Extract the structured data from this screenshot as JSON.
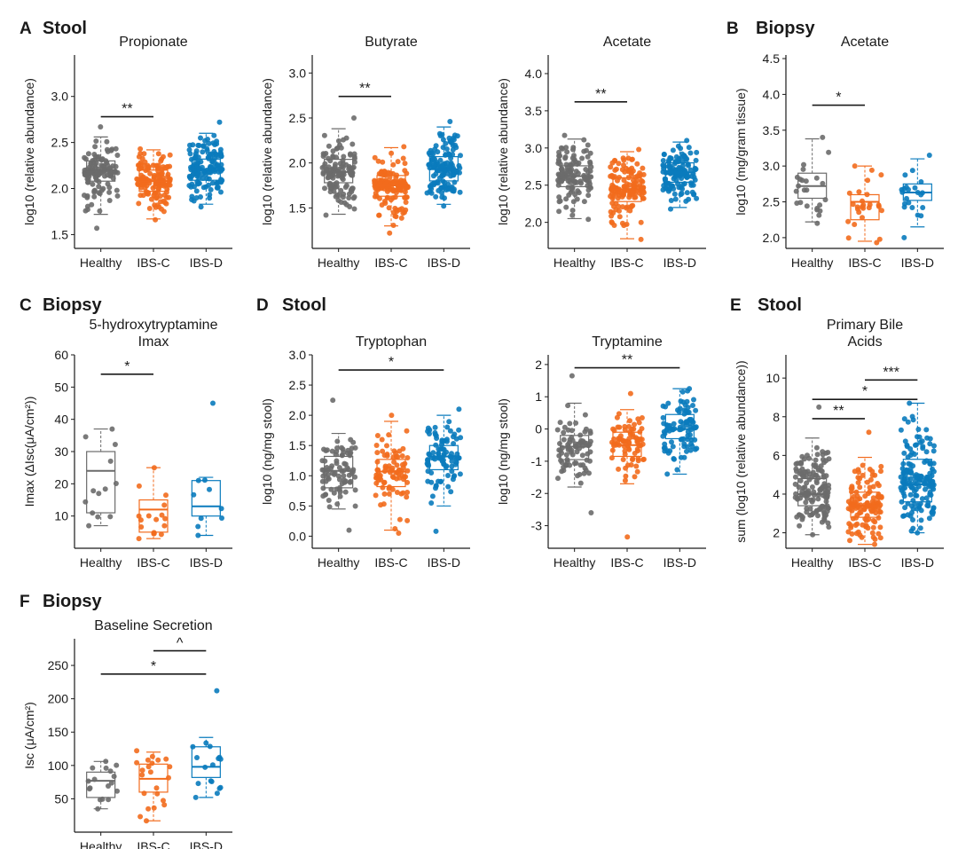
{
  "colors": {
    "Healthy": "#6b6b6b",
    "IBS-C": "#f26b1d",
    "IBS-D": "#0a7bbd",
    "axis": "#1a1a1a"
  },
  "sections": [
    {
      "label": "A",
      "title": "Stool"
    },
    {
      "label": "B",
      "title": "Biopsy"
    },
    {
      "label": "C",
      "title": "Biopsy"
    },
    {
      "label": "D",
      "title": "Stool"
    },
    {
      "label": "E",
      "title": "Stool"
    },
    {
      "label": "F",
      "title": "Biopsy"
    }
  ],
  "chart_data": [
    {
      "type": "box",
      "id": "propionate",
      "panel": "A",
      "title": [
        "Propionate"
      ],
      "ylabel": "log10 (relative abundance)",
      "ylim": [
        1.35,
        3.45
      ],
      "yticks": [
        "1.5",
        "2.0",
        "2.5",
        "3.0"
      ],
      "categories": [
        "Healthy",
        "IBS-C",
        "IBS-D"
      ],
      "n_points": [
        120,
        140,
        140
      ],
      "boxes": [
        {
          "q1": 2.08,
          "median": 2.2,
          "q3": 2.3,
          "lo": 1.72,
          "hi": 2.56,
          "pmin": 1.57,
          "pmax": 2.67
        },
        {
          "q1": 1.97,
          "median": 2.08,
          "q3": 2.2,
          "lo": 1.67,
          "hi": 2.42,
          "pmin": 1.66,
          "pmax": 2.43
        },
        {
          "q1": 2.09,
          "median": 2.2,
          "q3": 2.32,
          "lo": 1.83,
          "hi": 2.6,
          "pmin": 1.8,
          "pmax": 2.72
        }
      ],
      "sig": [
        {
          "from": 0,
          "to": 1,
          "y": 2.78,
          "label": "**"
        }
      ]
    },
    {
      "type": "box",
      "id": "butyrate",
      "panel": "A",
      "title": [
        "Butyrate"
      ],
      "ylabel": "log10 (relative abundance)",
      "ylim": [
        1.05,
        3.2
      ],
      "yticks": [
        "1.5",
        "2.0",
        "2.5",
        "3.0"
      ],
      "categories": [
        "Healthy",
        "IBS-C",
        "IBS-D"
      ],
      "n_points": [
        120,
        140,
        140
      ],
      "boxes": [
        {
          "q1": 1.78,
          "median": 1.9,
          "q3": 2.04,
          "lo": 1.43,
          "hi": 2.38,
          "pmin": 1.42,
          "pmax": 2.5
        },
        {
          "q1": 1.63,
          "median": 1.75,
          "q3": 1.86,
          "lo": 1.3,
          "hi": 2.17,
          "pmin": 1.22,
          "pmax": 2.18
        },
        {
          "q1": 1.8,
          "median": 1.93,
          "q3": 2.07,
          "lo": 1.54,
          "hi": 2.4,
          "pmin": 1.52,
          "pmax": 2.46
        }
      ],
      "sig": [
        {
          "from": 0,
          "to": 1,
          "y": 2.74,
          "label": "**"
        }
      ]
    },
    {
      "type": "box",
      "id": "acetate-stool",
      "panel": "A",
      "title": [
        "Acetate"
      ],
      "ylabel": "log10 (relative abundance)",
      "ylim": [
        1.65,
        4.25
      ],
      "yticks": [
        "2.0",
        "2.5",
        "3.0",
        "3.5",
        "4.0"
      ],
      "categories": [
        "Healthy",
        "IBS-C",
        "IBS-D"
      ],
      "n_points": [
        120,
        140,
        140
      ],
      "boxes": [
        {
          "q1": 2.48,
          "median": 2.62,
          "q3": 2.76,
          "lo": 2.05,
          "hi": 3.12,
          "pmin": 2.04,
          "pmax": 3.17
        },
        {
          "q1": 2.28,
          "median": 2.44,
          "q3": 2.6,
          "lo": 1.78,
          "hi": 2.95,
          "pmin": 1.77,
          "pmax": 2.98
        },
        {
          "q1": 2.54,
          "median": 2.67,
          "q3": 2.8,
          "lo": 2.2,
          "hi": 3.08,
          "pmin": 2.18,
          "pmax": 3.1
        }
      ],
      "sig": [
        {
          "from": 0,
          "to": 1,
          "y": 3.62,
          "label": "**"
        }
      ]
    },
    {
      "type": "box",
      "id": "acetate-biopsy",
      "panel": "B",
      "title": [
        "Acetate"
      ],
      "ylabel": "log10 (mg/gram tissue)",
      "ylim": [
        1.85,
        4.55
      ],
      "yticks": [
        "2.0",
        "2.5",
        "3.0",
        "3.5",
        "4.0",
        "4.5"
      ],
      "categories": [
        "Healthy",
        "IBS-C",
        "IBS-D"
      ],
      "n_points": [
        22,
        24,
        20
      ],
      "boxes": [
        {
          "q1": 2.55,
          "median": 2.72,
          "q3": 2.9,
          "lo": 2.22,
          "hi": 3.38,
          "pmin": 2.2,
          "pmax": 3.4
        },
        {
          "q1": 2.25,
          "median": 2.5,
          "q3": 2.6,
          "lo": 1.95,
          "hi": 3.0,
          "pmin": 1.93,
          "pmax": 3.0
        },
        {
          "q1": 2.52,
          "median": 2.63,
          "q3": 2.75,
          "lo": 2.15,
          "hi": 3.1,
          "pmin": 2.0,
          "pmax": 3.15
        }
      ],
      "sig": [
        {
          "from": 0,
          "to": 1,
          "y": 3.85,
          "label": "*"
        }
      ]
    },
    {
      "type": "box",
      "id": "5ht-imax",
      "panel": "C",
      "title": [
        "5-hydroxytryptamine",
        "Imax"
      ],
      "ylabel": "Imax (ΔIsc(μA/cm²))",
      "ylim": [
        0,
        60
      ],
      "yticks": [
        "10",
        "20",
        "30",
        "40",
        "50",
        "60"
      ],
      "categories": [
        "Healthy",
        "IBS-C",
        "IBS-D"
      ],
      "n_points": [
        11,
        15,
        8
      ],
      "boxes": [
        {
          "q1": 11,
          "median": 24,
          "q3": 30,
          "lo": 7,
          "hi": 37,
          "pmin": 7,
          "pmax": 37
        },
        {
          "q1": 5,
          "median": 12,
          "q3": 15,
          "lo": 3,
          "hi": 25,
          "pmin": 3,
          "pmax": 25
        },
        {
          "q1": 10,
          "median": 13,
          "q3": 21,
          "lo": 4,
          "hi": 22,
          "pmin": 4,
          "pmax": 45
        }
      ],
      "sig": [
        {
          "from": 0,
          "to": 1,
          "y": 54,
          "label": "*"
        }
      ]
    },
    {
      "type": "box",
      "id": "tryptophan",
      "panel": "D",
      "title": [
        "Tryptophan"
      ],
      "ylabel": "log10 (ng/mg stool)",
      "ylim": [
        -0.2,
        3.0
      ],
      "yticks": [
        "0.0",
        "0.5",
        "1.0",
        "1.5",
        "2.0",
        "2.5",
        "3.0"
      ],
      "categories": [
        "Healthy",
        "IBS-C",
        "IBS-D"
      ],
      "n_points": [
        80,
        80,
        90
      ],
      "boxes": [
        {
          "q1": 0.8,
          "median": 1.08,
          "q3": 1.32,
          "lo": 0.45,
          "hi": 1.7,
          "pmin": 0.1,
          "pmax": 2.25
        },
        {
          "q1": 0.82,
          "median": 1.07,
          "q3": 1.27,
          "lo": 0.1,
          "hi": 1.9,
          "pmin": 0.05,
          "pmax": 2.0
        },
        {
          "q1": 1.1,
          "median": 1.32,
          "q3": 1.5,
          "lo": 0.5,
          "hi": 2.0,
          "pmin": 0.08,
          "pmax": 2.1
        }
      ],
      "sig": [
        {
          "from": 0,
          "to": 2,
          "y": 2.75,
          "label": "*"
        }
      ]
    },
    {
      "type": "box",
      "id": "tryptamine",
      "panel": "D",
      "title": [
        "Tryptamine"
      ],
      "ylabel": "log10 (ng/mg stool)",
      "ylim": [
        -3.7,
        2.3
      ],
      "yticks": [
        "-3",
        "-2",
        "-1",
        "0",
        "1",
        "2"
      ],
      "categories": [
        "Healthy",
        "IBS-C",
        "IBS-D"
      ],
      "n_points": [
        80,
        80,
        90
      ],
      "boxes": [
        {
          "q1": -0.95,
          "median": -0.55,
          "q3": -0.2,
          "lo": -1.8,
          "hi": 0.8,
          "pmin": -2.6,
          "pmax": 1.65
        },
        {
          "q1": -0.85,
          "median": -0.5,
          "q3": -0.1,
          "lo": -1.7,
          "hi": 0.6,
          "pmin": -3.35,
          "pmax": 1.1
        },
        {
          "q1": -0.3,
          "median": 0.0,
          "q3": 0.45,
          "lo": -1.4,
          "hi": 1.25,
          "pmin": -1.4,
          "pmax": 1.25
        }
      ],
      "sig": [
        {
          "from": 0,
          "to": 2,
          "y": 1.9,
          "label": "**"
        }
      ]
    },
    {
      "type": "box",
      "id": "primary-bile-acids",
      "panel": "E",
      "title": [
        "Primary Bile",
        "Acids"
      ],
      "ylabel": "sum (log10 (relative abundance))",
      "ylim": [
        1.2,
        11.2
      ],
      "yticks": [
        "2",
        "4",
        "6",
        "8",
        "10"
      ],
      "categories": [
        "Healthy",
        "IBS-C",
        "IBS-D"
      ],
      "n_points": [
        140,
        120,
        150
      ],
      "boxes": [
        {
          "q1": 3.4,
          "median": 4.0,
          "q3": 4.8,
          "lo": 1.9,
          "hi": 6.9,
          "pmin": 1.9,
          "pmax": 8.5
        },
        {
          "q1": 2.8,
          "median": 3.4,
          "q3": 4.1,
          "lo": 1.4,
          "hi": 5.9,
          "pmin": 1.4,
          "pmax": 7.2
        },
        {
          "q1": 3.6,
          "median": 4.5,
          "q3": 5.8,
          "lo": 2.0,
          "hi": 8.7,
          "pmin": 2.0,
          "pmax": 8.7
        }
      ],
      "sig": [
        {
          "from": 1,
          "to": 2,
          "y": 9.9,
          "label": "***"
        },
        {
          "from": 0,
          "to": 2,
          "y": 8.9,
          "label": "*"
        },
        {
          "from": 0,
          "to": 1,
          "y": 7.9,
          "label": "**"
        }
      ]
    },
    {
      "type": "box",
      "id": "baseline-secretion",
      "panel": "F",
      "title": [
        "Baseline Secretion"
      ],
      "ylabel": "Isc (μA/cm²)",
      "ylim": [
        0,
        290
      ],
      "yticks": [
        "50",
        "100",
        "150",
        "200",
        "250"
      ],
      "categories": [
        "Healthy",
        "IBS-C",
        "IBS-D"
      ],
      "n_points": [
        15,
        20,
        15
      ],
      "boxes": [
        {
          "q1": 52,
          "median": 77,
          "q3": 90,
          "lo": 35,
          "hi": 106,
          "pmin": 35,
          "pmax": 106
        },
        {
          "q1": 60,
          "median": 80,
          "q3": 102,
          "lo": 17,
          "hi": 120,
          "pmin": 17,
          "pmax": 122
        },
        {
          "q1": 82,
          "median": 98,
          "q3": 128,
          "lo": 52,
          "hi": 142,
          "pmin": 52,
          "pmax": 212
        }
      ],
      "sig": [
        {
          "from": 1,
          "to": 2,
          "y": 272,
          "label": "^"
        },
        {
          "from": 0,
          "to": 2,
          "y": 237,
          "label": "*"
        }
      ]
    }
  ]
}
